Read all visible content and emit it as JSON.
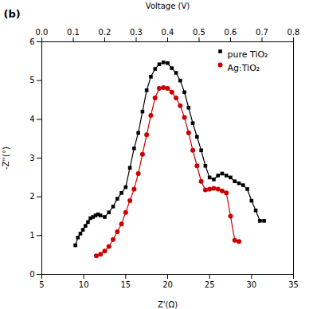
{
  "chart_data": {
    "type": "line",
    "xlabel": "Z'(Ω)",
    "ylabel": "-Z''(°)",
    "x2label": "Voltage (V)",
    "annotations": [
      "(b)"
    ],
    "xlim": [
      5,
      35
    ],
    "xticks": [
      5,
      10,
      15,
      20,
      25,
      30,
      35
    ],
    "ylim": [
      0,
      6
    ],
    "yticks": [
      0,
      1,
      2,
      3,
      4,
      5,
      6
    ],
    "x2lim": [
      0,
      0.8
    ],
    "x2ticks": [
      {
        "value": 0,
        "label": "0.0"
      },
      0.1,
      0.2,
      0.3,
      0.4,
      0.5,
      0.6,
      0.7,
      0.8
    ],
    "legend": "upper right",
    "grid": false,
    "series": [
      {
        "name": "pure TiO₂",
        "color": "#000000",
        "marker": "square",
        "x": [
          9.0,
          9.3,
          9.6,
          9.9,
          10.2,
          10.5,
          10.8,
          11.1,
          11.4,
          11.7,
          12.0,
          12.5,
          13.0,
          13.5,
          14.0,
          14.5,
          15.0,
          15.5,
          16.0,
          16.5,
          17.0,
          17.5,
          18.0,
          18.5,
          19.0,
          19.5,
          20.0,
          20.5,
          21.0,
          21.5,
          22.0,
          22.5,
          23.0,
          23.5,
          24.0,
          24.5,
          25.0,
          25.5,
          26.0,
          26.5,
          27.0,
          27.5,
          28.0,
          28.5,
          29.0,
          29.5,
          30.0,
          30.5,
          31.0,
          31.5
        ],
        "values": [
          0.75,
          0.95,
          1.05,
          1.15,
          1.25,
          1.35,
          1.45,
          1.48,
          1.52,
          1.55,
          1.52,
          1.48,
          1.6,
          1.75,
          1.95,
          2.1,
          2.25,
          2.75,
          3.25,
          3.65,
          4.2,
          4.75,
          5.1,
          5.3,
          5.42,
          5.47,
          5.45,
          5.32,
          5.2,
          5.0,
          4.7,
          4.3,
          3.9,
          3.55,
          3.2,
          2.8,
          2.5,
          2.45,
          2.55,
          2.6,
          2.55,
          2.5,
          2.4,
          2.35,
          2.3,
          2.2,
          1.9,
          1.65,
          1.38,
          1.38
        ]
      },
      {
        "name": "Ag:TiO₂",
        "color": "#cc0000",
        "marker": "circle",
        "x": [
          11.5,
          12.0,
          12.5,
          13.0,
          13.5,
          14.0,
          14.5,
          15.0,
          15.5,
          16.0,
          16.5,
          17.0,
          17.5,
          18.0,
          18.5,
          19.0,
          19.5,
          20.0,
          20.5,
          21.0,
          21.5,
          22.0,
          22.5,
          23.0,
          23.5,
          24.0,
          24.5,
          25.0,
          25.5,
          26.0,
          26.5,
          27.0,
          27.5,
          28.0,
          28.5
        ],
        "values": [
          0.48,
          0.52,
          0.6,
          0.72,
          0.9,
          1.1,
          1.3,
          1.6,
          1.9,
          2.2,
          2.6,
          3.1,
          3.6,
          4.1,
          4.55,
          4.8,
          4.82,
          4.8,
          4.7,
          4.55,
          4.35,
          4.05,
          3.65,
          3.2,
          2.8,
          2.4,
          2.18,
          2.2,
          2.22,
          2.2,
          2.15,
          2.1,
          1.5,
          0.88,
          0.85
        ]
      }
    ]
  }
}
